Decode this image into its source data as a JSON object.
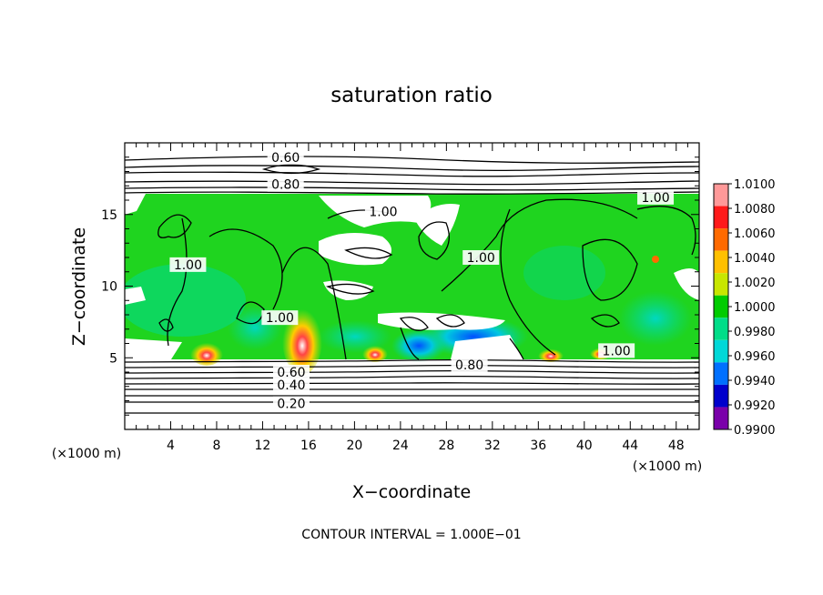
{
  "chart_data": {
    "type": "heatmap",
    "title": "saturation ratio",
    "xlabel": "X−coordinate",
    "ylabel": "Z−coordinate",
    "x_unit": "(×1000 m)",
    "y_unit": "(×1000 m)",
    "xlim": [
      0,
      50
    ],
    "ylim": [
      0,
      20
    ],
    "x_ticks": [
      4,
      8,
      12,
      16,
      20,
      24,
      28,
      32,
      36,
      40,
      44,
      48
    ],
    "y_ticks": [
      5,
      10,
      15
    ],
    "colorbar": {
      "ticks": [
        "1.0100",
        "1.0080",
        "1.0060",
        "1.0040",
        "1.0020",
        "1.0000",
        "0.9980",
        "0.9960",
        "0.9940",
        "0.9920",
        "0.9900"
      ],
      "colors": [
        "#ff9999",
        "#ff1a1a",
        "#ff6a00",
        "#ffc000",
        "#c8e600",
        "#00cc00",
        "#00dd88",
        "#00d8d8",
        "#0070ff",
        "#0000cc",
        "#7a00aa"
      ]
    },
    "contour_labels": [
      {
        "text": "0.60",
        "x": 14.5,
        "y": 4.0
      },
      {
        "text": "0.40",
        "x": 14.5,
        "y": 3.1
      },
      {
        "text": "0.20",
        "x": 14.5,
        "y": 1.8
      },
      {
        "text": "0.60",
        "x": 14.0,
        "y": 19.0
      },
      {
        "text": "0.80",
        "x": 14.0,
        "y": 17.1
      },
      {
        "text": "1.00",
        "x": 46.2,
        "y": 16.2
      },
      {
        "text": "1.00",
        "x": 22.5,
        "y": 15.2
      },
      {
        "text": "1.00",
        "x": 5.5,
        "y": 11.5
      },
      {
        "text": "1.00",
        "x": 13.5,
        "y": 7.8
      },
      {
        "text": "1.00",
        "x": 31.0,
        "y": 12.0
      },
      {
        "text": "1.00",
        "x": 42.8,
        "y": 5.5
      },
      {
        "text": "0.80",
        "x": 30.0,
        "y": 4.5
      }
    ],
    "footer": "CONTOUR INTERVAL = 1.000E−01"
  }
}
